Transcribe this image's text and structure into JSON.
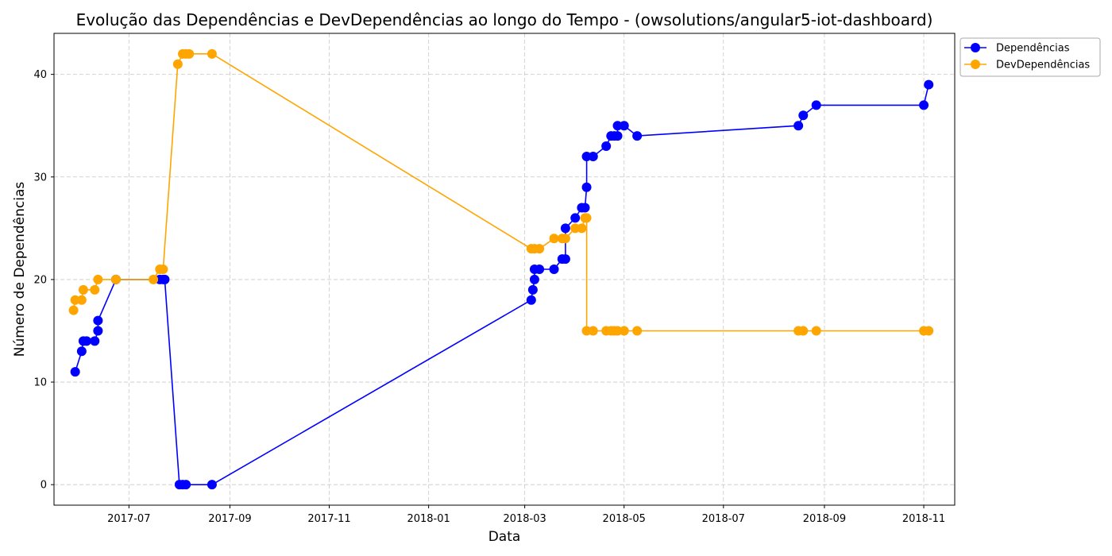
{
  "chart_data": {
    "type": "line",
    "title": "Evolução das Dependências e DevDependências ao longo do Tempo - (owsolutions/angular5-iot-dashboard)",
    "xlabel": "Data",
    "ylabel": "Número de Dependências",
    "xlim": [
      "2017-05-16",
      "2018-11-20"
    ],
    "ylim": [
      -2,
      44
    ],
    "xticks": [
      "2017-07",
      "2017-09",
      "2017-11",
      "2018-01",
      "2018-03",
      "2018-05",
      "2018-07",
      "2018-09",
      "2018-11"
    ],
    "yticks": [
      0,
      10,
      20,
      30,
      40
    ],
    "grid": true,
    "legend_position": "outside-top-right",
    "series": [
      {
        "name": "Dependências",
        "color": "#0000ff",
        "marker": "circle",
        "points": [
          [
            "2017-05-29",
            11
          ],
          [
            "2017-06-02",
            13
          ],
          [
            "2017-06-03",
            14
          ],
          [
            "2017-06-05",
            14
          ],
          [
            "2017-06-10",
            14
          ],
          [
            "2017-06-12",
            15
          ],
          [
            "2017-06-12",
            16
          ],
          [
            "2017-06-23",
            20
          ],
          [
            "2017-07-20",
            20
          ],
          [
            "2017-07-22",
            20
          ],
          [
            "2017-07-23",
            20
          ],
          [
            "2017-08-01",
            0
          ],
          [
            "2017-08-03",
            0
          ],
          [
            "2017-08-05",
            0
          ],
          [
            "2017-08-21",
            0
          ],
          [
            "2018-03-05",
            18
          ],
          [
            "2018-03-06",
            19
          ],
          [
            "2018-03-07",
            20
          ],
          [
            "2018-03-07",
            21
          ],
          [
            "2018-03-10",
            21
          ],
          [
            "2018-03-19",
            21
          ],
          [
            "2018-03-24",
            22
          ],
          [
            "2018-03-26",
            22
          ],
          [
            "2018-03-26",
            25
          ],
          [
            "2018-04-01",
            26
          ],
          [
            "2018-04-05",
            27
          ],
          [
            "2018-04-07",
            27
          ],
          [
            "2018-04-08",
            29
          ],
          [
            "2018-04-08",
            32
          ],
          [
            "2018-04-12",
            32
          ],
          [
            "2018-04-20",
            33
          ],
          [
            "2018-04-23",
            34
          ],
          [
            "2018-04-25",
            34
          ],
          [
            "2018-04-27",
            34
          ],
          [
            "2018-04-27",
            35
          ],
          [
            "2018-05-01",
            35
          ],
          [
            "2018-05-09",
            34
          ],
          [
            "2018-08-16",
            35
          ],
          [
            "2018-08-19",
            36
          ],
          [
            "2018-08-27",
            37
          ],
          [
            "2018-11-01",
            37
          ],
          [
            "2018-11-04",
            39
          ]
        ]
      },
      {
        "name": "DevDependências",
        "color": "#ffa500",
        "marker": "circle",
        "points": [
          [
            "2017-05-28",
            17
          ],
          [
            "2017-05-29",
            18
          ],
          [
            "2017-06-02",
            18
          ],
          [
            "2017-06-03",
            19
          ],
          [
            "2017-06-10",
            19
          ],
          [
            "2017-06-12",
            20
          ],
          [
            "2017-06-23",
            20
          ],
          [
            "2017-07-16",
            20
          ],
          [
            "2017-07-20",
            21
          ],
          [
            "2017-07-22",
            21
          ],
          [
            "2017-07-31",
            41
          ],
          [
            "2017-08-03",
            42
          ],
          [
            "2017-08-05",
            42
          ],
          [
            "2017-08-07",
            42
          ],
          [
            "2017-08-21",
            42
          ],
          [
            "2018-03-05",
            23
          ],
          [
            "2018-03-07",
            23
          ],
          [
            "2018-03-10",
            23
          ],
          [
            "2018-03-19",
            24
          ],
          [
            "2018-03-24",
            24
          ],
          [
            "2018-03-26",
            24
          ],
          [
            "2018-04-01",
            25
          ],
          [
            "2018-04-05",
            25
          ],
          [
            "2018-04-07",
            26
          ],
          [
            "2018-04-08",
            26
          ],
          [
            "2018-04-08",
            15
          ],
          [
            "2018-04-12",
            15
          ],
          [
            "2018-04-20",
            15
          ],
          [
            "2018-04-23",
            15
          ],
          [
            "2018-04-25",
            15
          ],
          [
            "2018-04-27",
            15
          ],
          [
            "2018-05-01",
            15
          ],
          [
            "2018-05-09",
            15
          ],
          [
            "2018-08-16",
            15
          ],
          [
            "2018-08-19",
            15
          ],
          [
            "2018-08-27",
            15
          ],
          [
            "2018-11-01",
            15
          ],
          [
            "2018-11-04",
            15
          ]
        ]
      }
    ]
  }
}
